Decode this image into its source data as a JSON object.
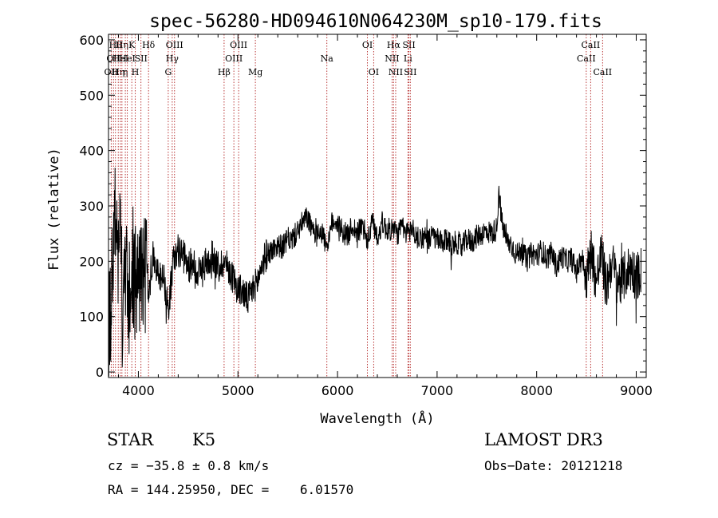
{
  "chart_data": {
    "type": "line",
    "title": "spec-56280-HD094610N064230M_sp10-179.fits",
    "xlabel": "Wavelength (Å)",
    "ylabel": "Flux (relative)",
    "xlim": [
      3700,
      9100
    ],
    "ylim": [
      -10,
      610
    ],
    "xticks": [
      4000,
      5000,
      6000,
      7000,
      8000,
      9000
    ],
    "yticks": [
      0,
      100,
      200,
      300,
      400,
      500,
      600
    ],
    "grid": false,
    "line_color": "#000000",
    "marker_color": "#b22222",
    "series": [
      {
        "x": [
          3700,
          3730,
          3760,
          3790,
          3820,
          3850,
          3880,
          3910,
          3940,
          3970,
          4000,
          4050,
          4100,
          4150,
          4200,
          4250,
          4300,
          4350,
          4400,
          4450,
          4500,
          4550,
          4600,
          4650,
          4700,
          4750,
          4800,
          4850,
          4900,
          4950,
          5000,
          5050,
          5100,
          5150,
          5200,
          5250,
          5300,
          5350,
          5400,
          5450,
          5500,
          5550,
          5600,
          5650,
          5700,
          5750,
          5800,
          5850,
          5900,
          5950,
          6000,
          6050,
          6100,
          6150,
          6200,
          6250,
          6300,
          6350,
          6400,
          6450,
          6500,
          6550,
          6600,
          6650,
          6700,
          6750,
          6800,
          6850,
          6900,
          6950,
          7000,
          7050,
          7100,
          7150,
          7200,
          7250,
          7300,
          7350,
          7400,
          7450,
          7500,
          7550,
          7600,
          7620,
          7650,
          7700,
          7750,
          7800,
          7850,
          7900,
          7950,
          8000,
          8050,
          8100,
          8150,
          8200,
          8250,
          8300,
          8350,
          8400,
          8450,
          8500,
          8550,
          8600,
          8650,
          8700,
          8750,
          8800,
          8850,
          8900,
          8950,
          9000,
          9050
        ],
        "y": [
          60,
          150,
          300,
          180,
          240,
          90,
          210,
          130,
          200,
          160,
          170,
          190,
          150,
          210,
          170,
          180,
          110,
          200,
          220,
          210,
          190,
          200,
          180,
          190,
          200,
          210,
          185,
          200,
          190,
          170,
          150,
          145,
          130,
          150,
          165,
          200,
          215,
          220,
          230,
          225,
          240,
          240,
          255,
          270,
          280,
          250,
          260,
          250,
          220,
          275,
          270,
          255,
          245,
          265,
          250,
          265,
          235,
          270,
          245,
          270,
          255,
          260,
          250,
          260,
          250,
          260,
          240,
          245,
          235,
          245,
          240,
          230,
          240,
          230,
          235,
          225,
          240,
          235,
          245,
          250,
          255,
          250,
          260,
          330,
          270,
          235,
          230,
          210,
          225,
          200,
          215,
          210,
          220,
          205,
          215,
          190,
          210,
          200,
          205,
          180,
          210,
          170,
          220,
          160,
          215,
          150,
          200,
          170,
          160,
          180,
          190,
          170,
          185
        ]
      }
    ],
    "lines": [
      {
        "w": 3727,
        "label": "OII",
        "row": 2
      },
      {
        "w": 3750,
        "label": "OII",
        "row": 1
      },
      {
        "w": 3770,
        "label": "Hθ",
        "row": 0
      },
      {
        "w": 3798,
        "label": "Hη",
        "row": 2
      },
      {
        "w": 3820,
        "label": "HeI",
        "row": 1
      },
      {
        "w": 3835,
        "label": "Hη",
        "row": 0
      },
      {
        "w": 3869,
        "label": "η",
        "row": 2
      },
      {
        "w": 3889,
        "label": "HeI",
        "row": 1
      },
      {
        "w": 3934,
        "label": "K",
        "row": 0
      },
      {
        "w": 3969,
        "label": "H",
        "row": 2
      },
      {
        "w": 4026,
        "label": "SII",
        "row": 1
      },
      {
        "w": 4102,
        "label": "Hδ",
        "row": 0
      },
      {
        "w": 4300,
        "label": "G",
        "row": 2
      },
      {
        "w": 4340,
        "label": "Hγ",
        "row": 1
      },
      {
        "w": 4363,
        "label": "OIII",
        "row": 0
      },
      {
        "w": 4861,
        "label": "Hβ",
        "row": 2
      },
      {
        "w": 4959,
        "label": "OIII",
        "row": 1
      },
      {
        "w": 5007,
        "label": "OIII",
        "row": 0
      },
      {
        "w": 5175,
        "label": "Mg",
        "row": 2
      },
      {
        "w": 5893,
        "label": "Na",
        "row": 1
      },
      {
        "w": 6300,
        "label": "OI",
        "row": 0
      },
      {
        "w": 6363,
        "label": "OI",
        "row": 2
      },
      {
        "w": 6548,
        "label": "NII",
        "row": 1
      },
      {
        "w": 6563,
        "label": "Hα",
        "row": 0
      },
      {
        "w": 6584,
        "label": "NII",
        "row": 2
      },
      {
        "w": 6707,
        "label": "Li",
        "row": 1
      },
      {
        "w": 6717,
        "label": "SII",
        "row": 0
      },
      {
        "w": 6731,
        "label": "SII",
        "row": 2
      },
      {
        "w": 8498,
        "label": "CaII",
        "row": 1
      },
      {
        "w": 8542,
        "label": "CaII",
        "row": 0
      },
      {
        "w": 8662,
        "label": "CaII",
        "row": 2
      }
    ]
  },
  "info": {
    "class": "STAR",
    "subclass": "K5",
    "cz": "cz = −35.8 ± 0.8 km/s",
    "radec": "RA = 144.25950, DEC =    6.01570",
    "survey": "LAMOST DR3",
    "obsdate": "Obs−Date: 20121218"
  }
}
